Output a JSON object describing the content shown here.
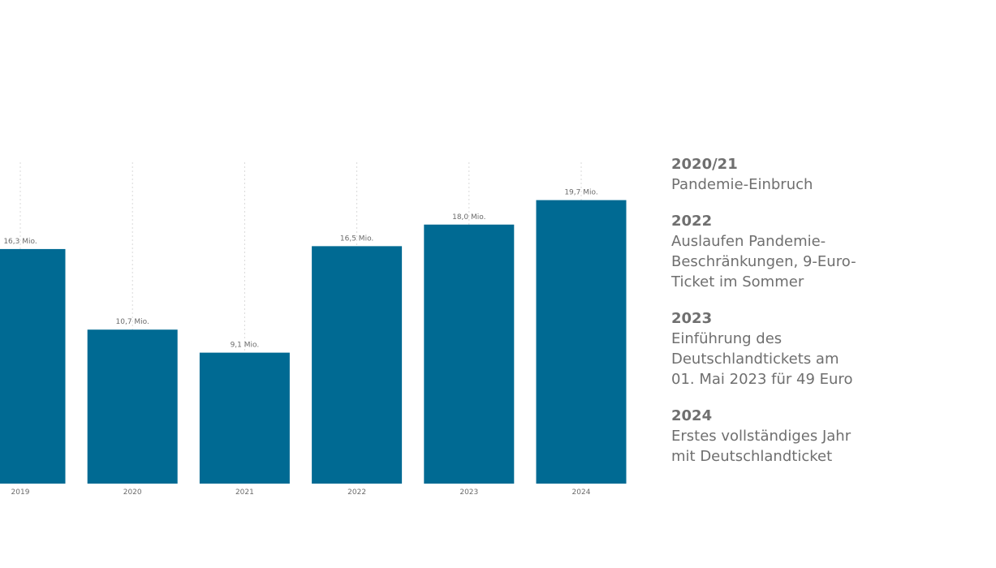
{
  "chart_data": {
    "type": "bar",
    "categories": [
      "2019",
      "2020",
      "2021",
      "2022",
      "2023",
      "2024"
    ],
    "values": [
      16.3,
      10.7,
      9.1,
      16.5,
      18.0,
      19.7
    ],
    "data_labels": [
      "16,3 Mio.",
      "10,7 Mio.",
      "9,1 Mio.",
      "16,5 Mio.",
      "18,0 Mio.",
      "19,7 Mio."
    ],
    "title": "",
    "xlabel": "",
    "ylabel": "",
    "ylim": [
      0,
      22
    ],
    "grid": "vertical-dotted",
    "bar_color": "#006a93",
    "grid_color": "#d9d9d9"
  },
  "annotations": [
    {
      "year": "2020/21",
      "text": "Pandemie-Einbruch"
    },
    {
      "year": "2022",
      "text": "Auslaufen Pandemie-\nBeschränkungen, 9-Euro-\nTicket im Sommer"
    },
    {
      "year": "2023",
      "text": "Einführung des\nDeutschlandtickets am\n01. Mai 2023 für 49 Euro"
    },
    {
      "year": "2024",
      "text": "Erstes vollständiges Jahr\nmit Deutschlandticket"
    }
  ]
}
